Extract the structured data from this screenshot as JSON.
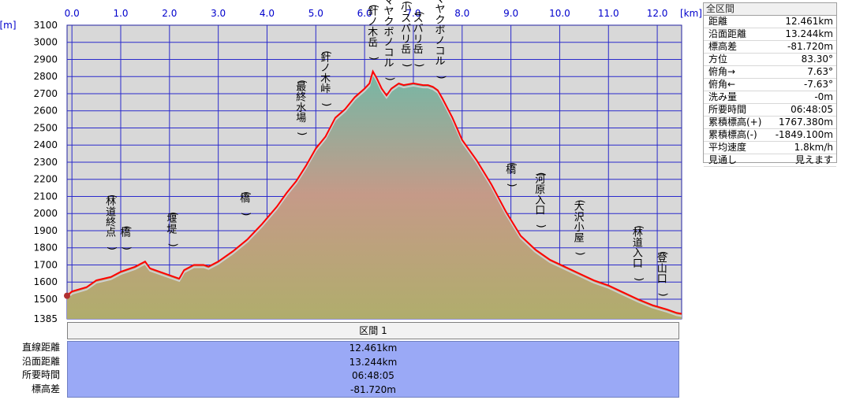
{
  "chart_data": {
    "type": "area",
    "x_unit": "[km]",
    "y_unit": "[m]",
    "xlim": [
      -0.1,
      12.5
    ],
    "ylim": [
      1385,
      3100
    ],
    "x_ticks": [
      "0.0",
      "1.0",
      "2.0",
      "3.0",
      "4.0",
      "5.0",
      "6.0",
      "7.0",
      "8.0",
      "9.0",
      "10.0",
      "11.0",
      "12.0"
    ],
    "y_ticks": [
      "3100",
      "3000",
      "2900",
      "2800",
      "2700",
      "2600",
      "2500",
      "2400",
      "2300",
      "2200",
      "2100",
      "2000",
      "1900",
      "1800",
      "1700",
      "1600",
      "1500",
      "1385"
    ],
    "grid": true,
    "profile": {
      "x": [
        -0.1,
        0.0,
        0.3,
        0.5,
        0.8,
        1.0,
        1.3,
        1.5,
        1.6,
        1.8,
        2.0,
        2.2,
        2.3,
        2.5,
        2.7,
        2.8,
        3.0,
        3.3,
        3.6,
        3.9,
        4.2,
        4.4,
        4.6,
        4.8,
        5.0,
        5.2,
        5.4,
        5.6,
        5.8,
        6.0,
        6.1,
        6.17,
        6.25,
        6.35,
        6.45,
        6.55,
        6.7,
        6.8,
        7.0,
        7.2,
        7.3,
        7.4,
        7.5,
        7.6,
        7.8,
        8.0,
        8.3,
        8.6,
        8.9,
        9.2,
        9.5,
        9.8,
        10.1,
        10.4,
        10.7,
        11.0,
        11.3,
        11.6,
        11.9,
        12.2,
        12.4,
        12.5
      ],
      "y": [
        1520,
        1545,
        1570,
        1610,
        1630,
        1660,
        1690,
        1720,
        1680,
        1660,
        1640,
        1620,
        1670,
        1700,
        1700,
        1690,
        1720,
        1780,
        1850,
        1940,
        2040,
        2120,
        2190,
        2280,
        2380,
        2450,
        2560,
        2610,
        2680,
        2730,
        2760,
        2830,
        2790,
        2730,
        2690,
        2730,
        2760,
        2750,
        2760,
        2750,
        2750,
        2740,
        2720,
        2670,
        2560,
        2430,
        2310,
        2170,
        2010,
        1870,
        1790,
        1730,
        1690,
        1650,
        1610,
        1580,
        1540,
        1500,
        1465,
        1440,
        1420,
        1415
      ]
    },
    "annotations": [
      {
        "text": "(林道終点)",
        "x": 0.8,
        "y": 1720
      },
      {
        "text": "(橋)",
        "x": 1.1,
        "y": 1720
      },
      {
        "text": "(堰堤)",
        "x": 2.05,
        "y": 1740
      },
      {
        "text": "(橋)",
        "x": 3.55,
        "y": 1920
      },
      {
        "text": "(最終水場)",
        "x": 4.7,
        "y": 2390
      },
      {
        "text": "(針ノ木峠)",
        "x": 5.2,
        "y": 2560
      },
      {
        "text": "(針ノ木岳)",
        "x": 6.17,
        "y": 2830
      },
      {
        "text": "(マヤクボノコル)",
        "x": 6.5,
        "y": 2710
      },
      {
        "text": "(小スバリ岳)",
        "x": 6.85,
        "y": 2790
      },
      {
        "text": "(スバリ岳)",
        "x": 7.1,
        "y": 2790
      },
      {
        "text": "(マヤクボノコル)",
        "x": 7.55,
        "y": 2720
      },
      {
        "text": "(橋)",
        "x": 9.0,
        "y": 2090
      },
      {
        "text": "(河原入口)",
        "x": 9.6,
        "y": 1850
      },
      {
        "text": "(大沢小屋)",
        "x": 10.4,
        "y": 1690
      },
      {
        "text": "(林道入口)",
        "x": 11.6,
        "y": 1540
      },
      {
        "text": "(登山口)",
        "x": 12.1,
        "y": 1450
      }
    ]
  },
  "section": {
    "header": "区間 1",
    "labels": [
      "直線距離",
      "沿面距離",
      "所要時間",
      "標高差"
    ],
    "values": [
      "12.461km",
      "13.244km",
      "06:48:05",
      "-81.720m"
    ]
  },
  "stats_panel": {
    "title": "全区間",
    "rows": [
      {
        "label": "距離",
        "value": "12.461km"
      },
      {
        "label": "沿面距離",
        "value": "13.244km"
      },
      {
        "label": "標高差",
        "value": "-81.720m"
      },
      {
        "label": "方位",
        "value": "83.30°"
      },
      {
        "label": "俯角→",
        "value": "7.63°"
      },
      {
        "label": "俯角←",
        "value": "-7.63°"
      },
      {
        "label": "洗み量",
        "value": "-0m"
      },
      {
        "label": "所要時間",
        "value": "06:48:05"
      },
      {
        "label": "累積標高(+)",
        "value": "1767.380m"
      },
      {
        "label": "累積標高(-)",
        "value": "-1849.100m"
      },
      {
        "label": "平均速度",
        "value": "1.8km/h"
      },
      {
        "label": "見通し",
        "value": "見えます"
      }
    ]
  },
  "colors": {
    "plot_bg": "#d8d8d8",
    "grid": "#2a2acc",
    "profile_line": "#ff0000",
    "fill_high": "#74b8a6",
    "fill_mid": "#c59a88",
    "fill_low": "#b0ad6c",
    "summary_bg": "#9aa9f6"
  }
}
